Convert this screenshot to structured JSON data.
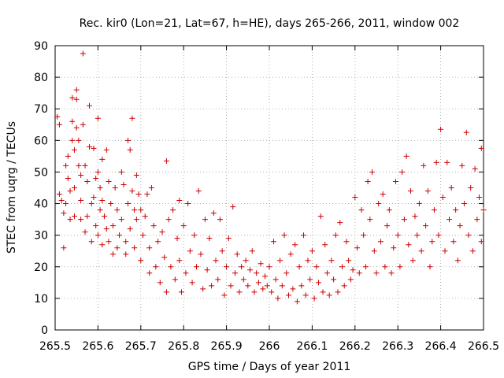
{
  "chart_data": {
    "type": "scatter",
    "title": "Rec. kir0 (Lon=21, Lat=67, h=HE), days 265-266, 2011, window 002",
    "xlabel": "GPS time / Days of year 2011",
    "ylabel": "STEC from uqrg / TECUs",
    "xlim": [
      265.5,
      266.5
    ],
    "ylim": [
      0,
      90
    ],
    "xticks": [
      "265.5",
      "265.6",
      "265.7",
      "265.8",
      "265.9",
      "266",
      "266.1",
      "266.2",
      "266.3",
      "266.4",
      "266.5"
    ],
    "yticks": [
      "0",
      "10",
      "20",
      "30",
      "40",
      "50",
      "60",
      "70",
      "80",
      "90"
    ],
    "grid": true,
    "marker": "plus",
    "marker_color": "#cc0000",
    "points": [
      [
        265.505,
        67.5
      ],
      [
        265.51,
        65
      ],
      [
        265.51,
        43
      ],
      [
        265.515,
        41
      ],
      [
        265.52,
        37
      ],
      [
        265.52,
        26
      ],
      [
        265.525,
        52
      ],
      [
        265.525,
        40
      ],
      [
        265.53,
        55
      ],
      [
        265.53,
        48
      ],
      [
        265.535,
        44
      ],
      [
        265.535,
        35
      ],
      [
        265.54,
        73.5
      ],
      [
        265.54,
        66
      ],
      [
        265.54,
        60
      ],
      [
        265.545,
        57
      ],
      [
        265.545,
        45
      ],
      [
        265.545,
        36
      ],
      [
        265.55,
        76
      ],
      [
        265.55,
        73
      ],
      [
        265.55,
        64
      ],
      [
        265.555,
        60
      ],
      [
        265.555,
        52
      ],
      [
        265.56,
        49
      ],
      [
        265.56,
        41
      ],
      [
        265.56,
        35
      ],
      [
        265.565,
        87.5
      ],
      [
        265.565,
        65
      ],
      [
        265.57,
        52
      ],
      [
        265.57,
        31
      ],
      [
        265.575,
        47
      ],
      [
        265.575,
        36
      ],
      [
        265.58,
        71
      ],
      [
        265.58,
        58
      ],
      [
        265.585,
        40
      ],
      [
        265.585,
        28
      ],
      [
        265.59,
        57.5
      ],
      [
        265.59,
        42
      ],
      [
        265.595,
        48
      ],
      [
        265.595,
        33
      ],
      [
        265.6,
        67
      ],
      [
        265.6,
        50
      ],
      [
        265.6,
        30
      ],
      [
        265.605,
        45
      ],
      [
        265.605,
        38
      ],
      [
        265.61,
        54
      ],
      [
        265.61,
        41
      ],
      [
        265.61,
        27
      ],
      [
        265.615,
        36
      ],
      [
        265.62,
        57
      ],
      [
        265.62,
        32
      ],
      [
        265.625,
        47
      ],
      [
        265.625,
        28
      ],
      [
        265.63,
        40
      ],
      [
        265.635,
        33
      ],
      [
        265.635,
        24
      ],
      [
        265.64,
        45
      ],
      [
        265.645,
        38
      ],
      [
        265.645,
        26
      ],
      [
        265.65,
        30
      ],
      [
        265.655,
        50
      ],
      [
        265.655,
        35
      ],
      [
        265.66,
        46
      ],
      [
        265.665,
        28
      ],
      [
        265.665,
        24
      ],
      [
        265.67,
        60
      ],
      [
        265.67,
        40
      ],
      [
        265.675,
        57
      ],
      [
        265.675,
        32
      ],
      [
        265.68,
        67
      ],
      [
        265.68,
        44
      ],
      [
        265.685,
        38
      ],
      [
        265.685,
        26
      ],
      [
        265.69,
        49
      ],
      [
        265.69,
        35
      ],
      [
        265.695,
        43
      ],
      [
        265.7,
        38
      ],
      [
        265.7,
        22
      ],
      [
        265.705,
        30
      ],
      [
        265.71,
        36
      ],
      [
        265.715,
        43
      ],
      [
        265.72,
        26
      ],
      [
        265.72,
        18
      ],
      [
        265.725,
        45
      ],
      [
        265.73,
        33
      ],
      [
        265.735,
        20
      ],
      [
        265.74,
        28
      ],
      [
        265.745,
        15
      ],
      [
        265.75,
        31
      ],
      [
        265.755,
        23
      ],
      [
        265.76,
        53.5
      ],
      [
        265.76,
        12
      ],
      [
        265.765,
        35
      ],
      [
        265.77,
        20
      ],
      [
        265.775,
        38
      ],
      [
        265.78,
        16
      ],
      [
        265.785,
        29
      ],
      [
        265.79,
        41
      ],
      [
        265.79,
        22
      ],
      [
        265.795,
        12
      ],
      [
        265.8,
        33
      ],
      [
        265.805,
        18
      ],
      [
        265.81,
        40
      ],
      [
        265.815,
        25
      ],
      [
        265.82,
        15
      ],
      [
        265.825,
        30
      ],
      [
        265.83,
        20
      ],
      [
        265.835,
        44
      ],
      [
        265.84,
        24
      ],
      [
        265.845,
        13
      ],
      [
        265.85,
        35
      ],
      [
        265.855,
        19
      ],
      [
        265.86,
        29
      ],
      [
        265.865,
        14
      ],
      [
        265.87,
        37
      ],
      [
        265.875,
        22
      ],
      [
        265.88,
        16
      ],
      [
        265.885,
        35
      ],
      [
        265.89,
        25
      ],
      [
        265.895,
        11
      ],
      [
        265.9,
        20
      ],
      [
        265.905,
        29
      ],
      [
        265.91,
        14
      ],
      [
        265.915,
        39
      ],
      [
        265.92,
        18
      ],
      [
        265.925,
        24
      ],
      [
        265.93,
        12
      ],
      [
        265.935,
        20
      ],
      [
        265.94,
        16
      ],
      [
        265.945,
        22
      ],
      [
        265.95,
        14
      ],
      [
        265.955,
        19
      ],
      [
        265.96,
        25
      ],
      [
        265.965,
        12
      ],
      [
        265.97,
        18
      ],
      [
        265.975,
        15
      ],
      [
        265.98,
        21
      ],
      [
        265.985,
        13
      ],
      [
        265.99,
        17
      ],
      [
        265.995,
        14
      ],
      [
        266.0,
        20
      ],
      [
        266.005,
        12
      ],
      [
        266.01,
        28
      ],
      [
        266.015,
        16
      ],
      [
        266.02,
        10
      ],
      [
        266.025,
        22
      ],
      [
        266.03,
        14
      ],
      [
        266.035,
        30
      ],
      [
        266.04,
        18
      ],
      [
        266.045,
        11
      ],
      [
        266.05,
        24
      ],
      [
        266.055,
        13
      ],
      [
        266.06,
        27
      ],
      [
        266.065,
        9
      ],
      [
        266.07,
        20
      ],
      [
        266.075,
        14
      ],
      [
        266.08,
        30
      ],
      [
        266.085,
        11
      ],
      [
        266.09,
        22
      ],
      [
        266.095,
        16
      ],
      [
        266.1,
        25
      ],
      [
        266.105,
        10
      ],
      [
        266.11,
        20
      ],
      [
        266.115,
        15
      ],
      [
        266.12,
        36
      ],
      [
        266.125,
        12
      ],
      [
        266.13,
        27
      ],
      [
        266.135,
        18
      ],
      [
        266.14,
        11
      ],
      [
        266.145,
        22
      ],
      [
        266.15,
        16
      ],
      [
        266.155,
        30
      ],
      [
        266.16,
        12
      ],
      [
        266.165,
        34
      ],
      [
        266.17,
        20
      ],
      [
        266.175,
        14
      ],
      [
        266.18,
        28
      ],
      [
        266.185,
        22
      ],
      [
        266.19,
        16
      ],
      [
        266.195,
        19
      ],
      [
        266.2,
        42
      ],
      [
        266.205,
        26
      ],
      [
        266.21,
        18
      ],
      [
        266.215,
        38
      ],
      [
        266.22,
        30
      ],
      [
        266.225,
        20
      ],
      [
        266.23,
        47
      ],
      [
        266.235,
        35
      ],
      [
        266.24,
        50
      ],
      [
        266.245,
        25
      ],
      [
        266.25,
        18
      ],
      [
        266.255,
        40
      ],
      [
        266.26,
        28
      ],
      [
        266.265,
        43
      ],
      [
        266.27,
        20
      ],
      [
        266.275,
        33
      ],
      [
        266.28,
        38
      ],
      [
        266.285,
        18
      ],
      [
        266.29,
        26
      ],
      [
        266.295,
        47
      ],
      [
        266.3,
        30
      ],
      [
        266.305,
        20
      ],
      [
        266.31,
        50
      ],
      [
        266.315,
        35
      ],
      [
        266.32,
        55
      ],
      [
        266.325,
        27
      ],
      [
        266.33,
        44
      ],
      [
        266.335,
        22
      ],
      [
        266.34,
        36
      ],
      [
        266.345,
        30
      ],
      [
        266.35,
        40
      ],
      [
        266.355,
        25
      ],
      [
        266.36,
        52
      ],
      [
        266.365,
        33
      ],
      [
        266.37,
        44
      ],
      [
        266.375,
        20
      ],
      [
        266.38,
        28
      ],
      [
        266.385,
        38
      ],
      [
        266.39,
        53
      ],
      [
        266.395,
        30
      ],
      [
        266.4,
        63.5
      ],
      [
        266.405,
        42
      ],
      [
        266.41,
        25
      ],
      [
        266.415,
        53
      ],
      [
        266.42,
        35
      ],
      [
        266.425,
        45
      ],
      [
        266.43,
        28
      ],
      [
        266.435,
        38
      ],
      [
        266.44,
        22
      ],
      [
        266.445,
        33
      ],
      [
        266.45,
        52
      ],
      [
        266.455,
        40
      ],
      [
        266.46,
        62.5
      ],
      [
        266.465,
        30
      ],
      [
        266.47,
        45
      ],
      [
        266.475,
        25
      ],
      [
        266.48,
        51
      ],
      [
        266.485,
        35
      ],
      [
        266.49,
        42
      ],
      [
        266.495,
        57.5
      ],
      [
        266.495,
        28
      ],
      [
        266.5,
        38
      ]
    ]
  }
}
